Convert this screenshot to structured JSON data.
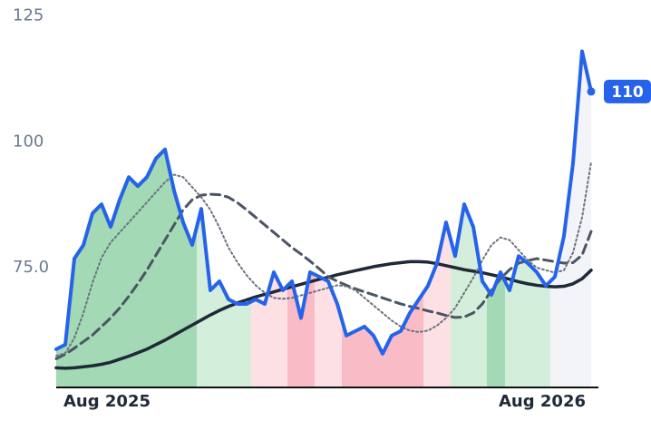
{
  "chart_data": {
    "type": "line",
    "categories": [
      null,
      null,
      null,
      null,
      null,
      null,
      "Aug 2025",
      null,
      null,
      null,
      null,
      null,
      null,
      null,
      null,
      null,
      null,
      null,
      null,
      null,
      null,
      null,
      null,
      null,
      null,
      null,
      null,
      null,
      null,
      null,
      null,
      null,
      null,
      null,
      null,
      null,
      null,
      null,
      null,
      null,
      null,
      null,
      null,
      null,
      null,
      null,
      null,
      null,
      null,
      null,
      null,
      null,
      null,
      null,
      "Aug 2026",
      null,
      null,
      null,
      null,
      null
    ],
    "ylim": [
      51.2,
      128.2
    ],
    "yticks": [
      {
        "value": 75,
        "label": "75.0"
      },
      100,
      125
    ],
    "grid": false,
    "area_colors": [
      "#a3d9b4",
      "#a3d9b4",
      "#a3d9b4",
      "#a3d9b4",
      "#a3d9b4",
      "#a3d9b4",
      "#a3d9b4",
      "#a3d9b4",
      "#a3d9b4",
      "#a3d9b4",
      "#a3d9b4",
      "#a3d9b4",
      "#a3d9b4",
      "#a3d9b4",
      "#a3d9b4",
      "#a3d9b4",
      "#d4eedc",
      "#d4eedc",
      "#d4eedc",
      "#d4eedc",
      "#d4eedc",
      "#d4eedc",
      "#fde0e4",
      "#fde0e4",
      "#fde0e4",
      "#fde0e4",
      "#f9bcc6",
      "#f9bcc6",
      "#f9bcc6",
      "#fde0e4",
      "#fde0e4",
      "#fde0e4",
      "#f9bcc6",
      "#f9bcc6",
      "#f9bcc6",
      "#f9bcc6",
      "#f9bcc6",
      "#f9bcc6",
      "#f9bcc6",
      "#f9bcc6",
      "#f9bcc6",
      "#fde0e4",
      "#fde0e4",
      "#fde0e4",
      "#d4eedc",
      "#d4eedc",
      "#d4eedc",
      "#d4eedc",
      "#a3d9b4",
      "#a3d9b4",
      "#d4eedc",
      "#d4eedc",
      "#d4eedc",
      "#d4eedc",
      "#d4eedc",
      "#f3f4f8",
      "#f3f4f8",
      "#f3f4f8",
      "#f3f4f8",
      "#f3f4f8"
    ],
    "series": [
      {
        "color": "#2563eb",
        "style": "solid",
        "width": 4,
        "area": true,
        "end_label": true,
        "values": [
          58.8,
          59.7,
          76.8,
          79.5,
          85.8,
          87.6,
          83.1,
          88.5,
          93,
          91.2,
          93,
          96.7,
          98.5,
          90.3,
          84,
          79.5,
          86.7,
          70.5,
          72.3,
          68.7,
          67.8,
          67.8,
          68.7,
          67.8,
          74.1,
          70.5,
          72.3,
          65,
          74.1,
          73.2,
          72.3,
          67.8,
          61.5,
          62.4,
          63.3,
          61.5,
          57.9,
          61.5,
          62.4,
          66,
          68.7,
          71.4,
          75.9,
          84,
          77.3,
          87.6,
          83.1,
          72.3,
          69.6,
          74.1,
          70.5,
          77.3,
          75.9,
          74.1,
          71.4,
          73.2,
          81.3,
          95.8,
          118,
          110
        ]
      },
      {
        "color": "#6b7280",
        "style": "dotted",
        "width": 2,
        "values": [
          57.5,
          58,
          61,
          66,
          72,
          77,
          80,
          82,
          84,
          86,
          88,
          90,
          92,
          93.5,
          93,
          91,
          89,
          86.5,
          83,
          79,
          76,
          73.5,
          71.5,
          70,
          69,
          68.8,
          69,
          69.5,
          70,
          70.5,
          71,
          71.5,
          71.3,
          70.5,
          69,
          67.5,
          66,
          64.5,
          63.3,
          62.5,
          62.2,
          62.5,
          63.5,
          65,
          67,
          70,
          73,
          76.5,
          79.5,
          81,
          80.5,
          78.5,
          76.5,
          75,
          74.5,
          74,
          74.5,
          78,
          85,
          96
        ]
      },
      {
        "color": "#4b5563",
        "style": "dashed",
        "width": 3,
        "values": [
          56.9,
          57.8,
          59,
          60.3,
          61.6,
          63.3,
          65,
          67,
          69.3,
          71.8,
          74.5,
          77.5,
          80.5,
          83.5,
          86.5,
          88.5,
          89.4,
          89.6,
          89.5,
          89,
          87.9,
          86.5,
          85,
          83.5,
          82,
          80.5,
          79,
          77.7,
          76.3,
          74.8,
          73.2,
          72.3,
          71.5,
          70.8,
          70.2,
          69.6,
          69,
          68.4,
          67.8,
          67.3,
          66.9,
          66.4,
          66,
          65.5,
          65.1,
          65.2,
          66,
          67.8,
          70.5,
          72.8,
          74.6,
          75.9,
          76.4,
          76.8,
          76.5,
          76.2,
          75.9,
          76,
          77.5,
          82.2
        ]
      },
      {
        "color": "#1f2937",
        "style": "solid",
        "width": 3.5,
        "values": [
          55.1,
          55,
          55.1,
          55.3,
          55.5,
          55.8,
          56.2,
          56.8,
          57.4,
          58.1,
          58.8,
          59.7,
          60.6,
          61.6,
          62.6,
          63.6,
          64.6,
          65.6,
          66.5,
          67.3,
          68,
          68.6,
          69.2,
          69.7,
          70.2,
          70.7,
          71.2,
          71.7,
          72.2,
          72.7,
          73.1,
          73.6,
          74,
          74.4,
          74.8,
          75.2,
          75.5,
          75.8,
          76,
          76.2,
          76.2,
          76.1,
          75.8,
          75.4,
          75,
          74.6,
          74.3,
          74,
          73.6,
          73.2,
          72.7,
          72.2,
          71.8,
          71.5,
          71.3,
          71.2,
          71.3,
          71.8,
          72.8,
          74.5
        ]
      }
    ]
  }
}
